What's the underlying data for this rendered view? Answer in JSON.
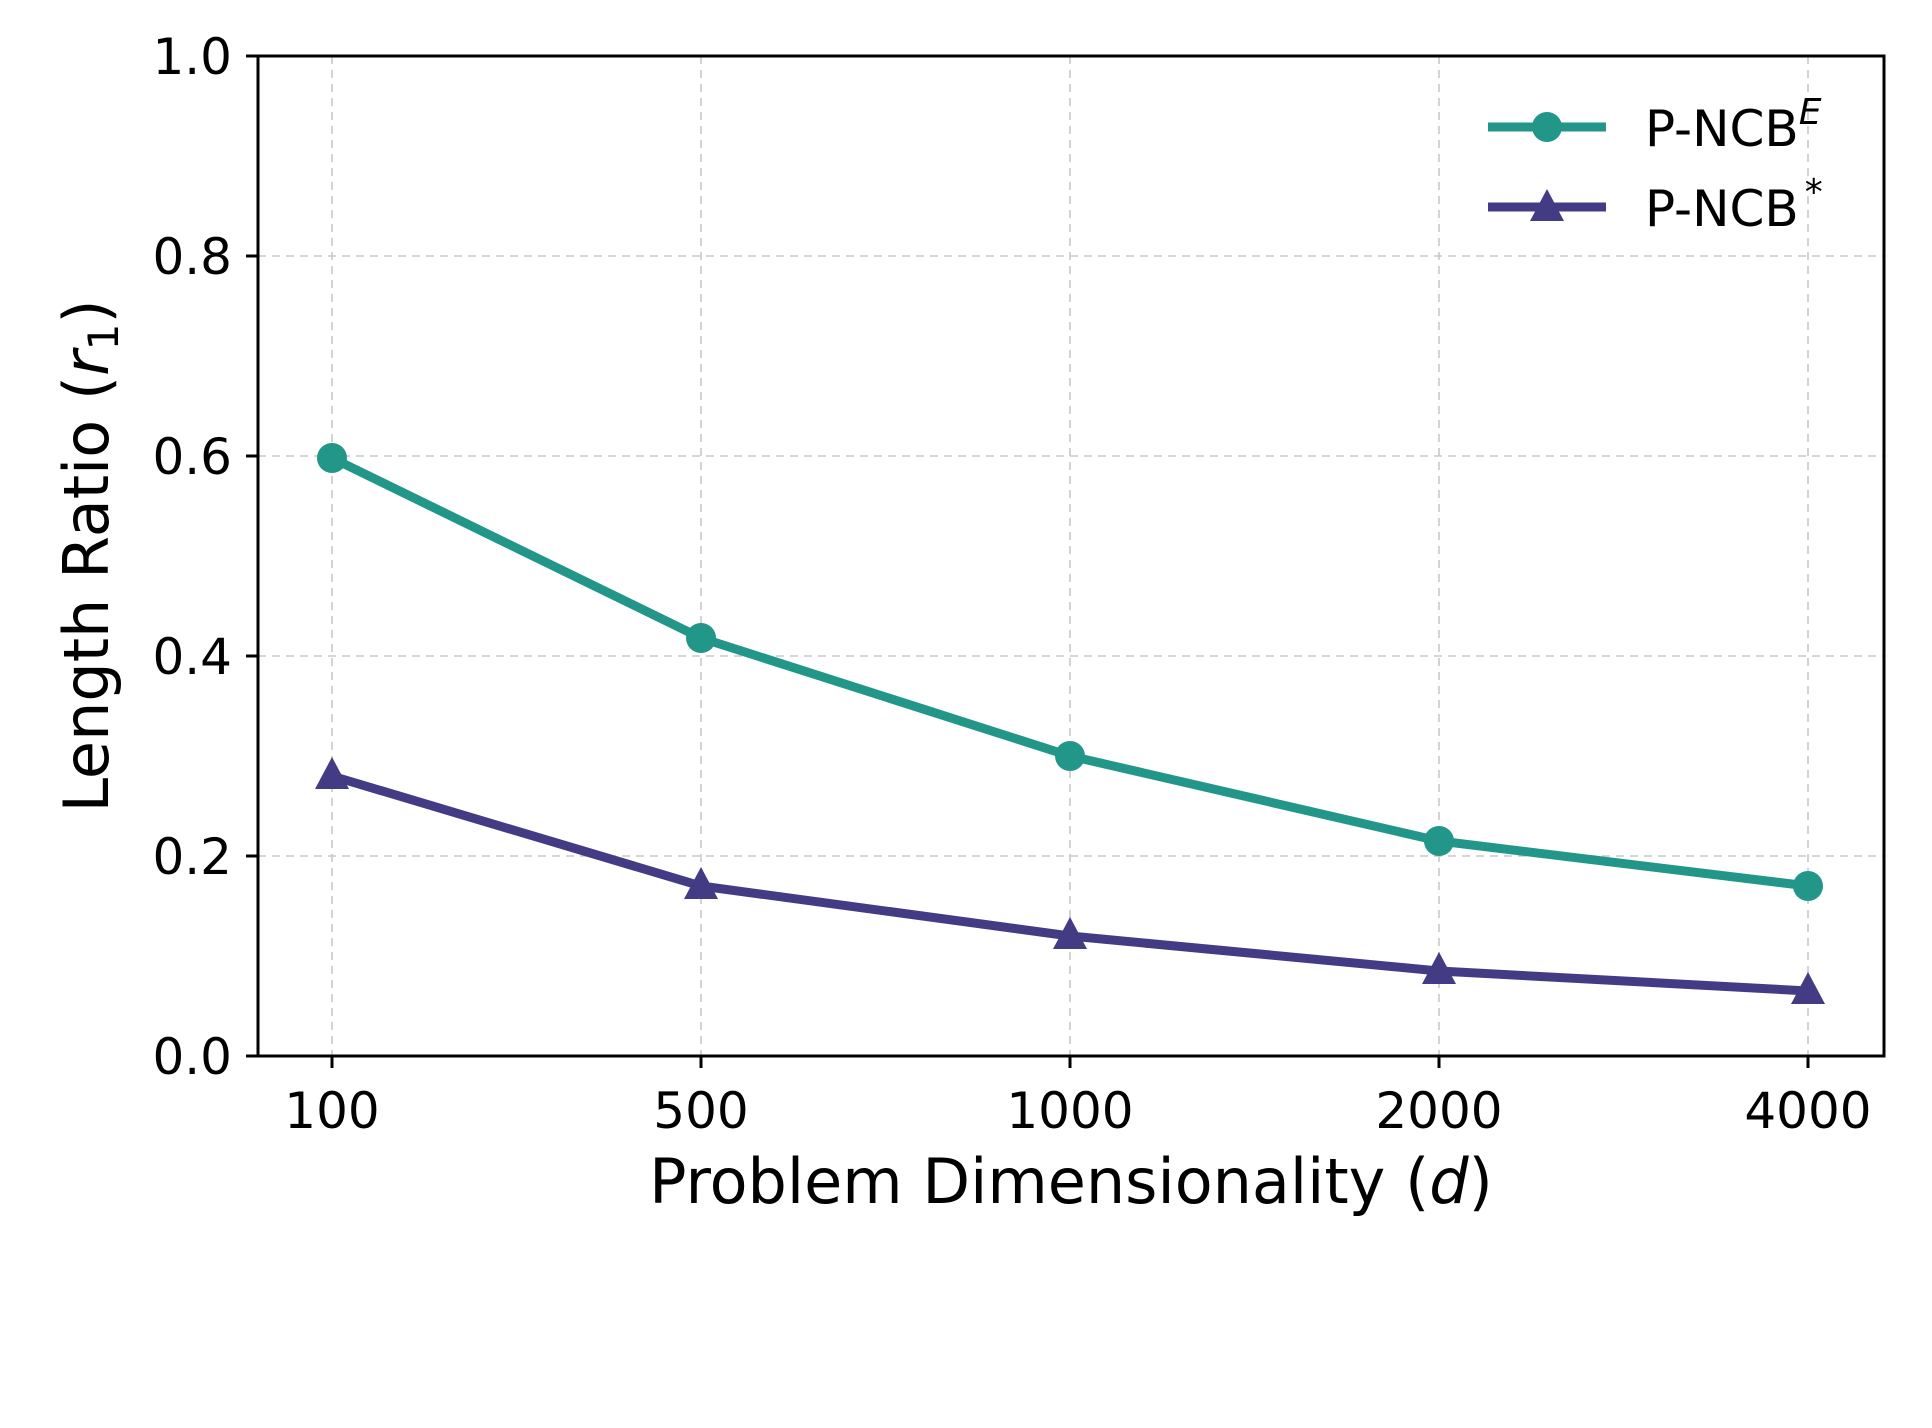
{
  "chart_data": {
    "type": "line",
    "categories": [
      "100",
      "500",
      "1000",
      "2000",
      "4000"
    ],
    "series": [
      {
        "name": "P-NCB",
        "name_sup": "E",
        "marker": "circle",
        "color": "#23968a",
        "values": [
          0.598,
          0.418,
          0.3,
          0.215,
          0.17
        ]
      },
      {
        "name": "P-NCB",
        "name_sup": "*",
        "marker": "triangle",
        "color": "#433c85",
        "values": [
          0.28,
          0.17,
          0.12,
          0.085,
          0.065
        ]
      }
    ],
    "xlabel": {
      "text": "Problem Dimensionality (",
      "var": "d",
      "close": ")"
    },
    "ylabel": {
      "text": "Length Ratio (",
      "var": "r",
      "sub": "1",
      "close": ")"
    },
    "ylim": [
      0.0,
      1.0
    ],
    "yticks": [
      "0.0",
      "0.2",
      "0.4",
      "0.6",
      "0.8",
      "1.0"
    ],
    "grid": true,
    "legend_position": "top-right"
  }
}
